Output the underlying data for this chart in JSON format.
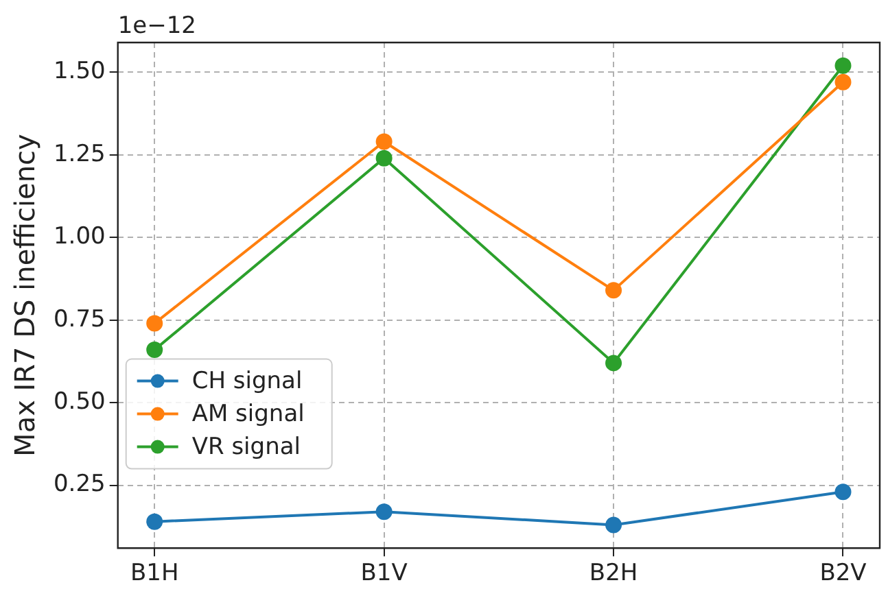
{
  "chart_data": {
    "type": "line",
    "ylabel": "Max IR7 DS inefficiency",
    "annotations": [
      "1e−12"
    ],
    "categories": [
      "B1H",
      "B1V",
      "B2H",
      "B2V"
    ],
    "series": [
      {
        "name": "CH signal",
        "color": "#1f77b4",
        "values": [
          0.14,
          0.17,
          0.13,
          0.23
        ]
      },
      {
        "name": "AM signal",
        "color": "#ff7f0e",
        "values": [
          0.74,
          1.29,
          0.84,
          1.47
        ]
      },
      {
        "name": "VR signal",
        "color": "#2ca02c",
        "values": [
          0.66,
          1.24,
          0.62,
          1.52
        ]
      }
    ],
    "ylim": [
      0.06,
      1.59
    ],
    "yticks": [
      {
        "value": 0.25,
        "label": "0.25"
      },
      {
        "value": 0.5,
        "label": "0.50"
      },
      {
        "value": 0.75,
        "label": "0.75"
      },
      {
        "value": 1.0,
        "label": "1.00"
      },
      {
        "value": 1.25,
        "label": "1.25"
      },
      {
        "value": 1.5,
        "label": "1.50"
      }
    ],
    "grid": true,
    "legend": "lower left",
    "marker": "circle",
    "line_style": "solid"
  }
}
